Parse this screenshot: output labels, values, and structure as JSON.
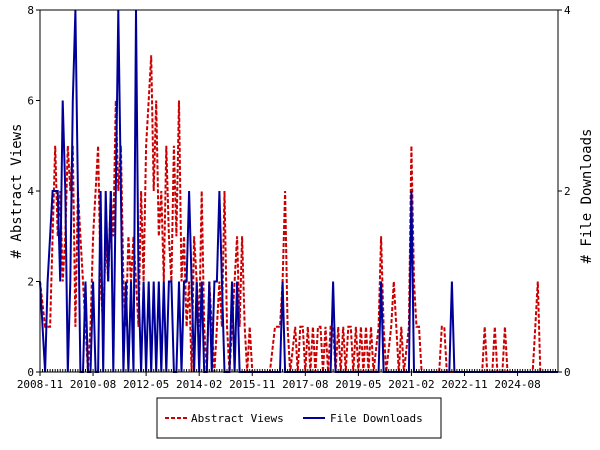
{
  "chart_data": {
    "type": "line",
    "title": "",
    "ylabel": "# Abstract Views",
    "y2label": "# File Downloads",
    "ylim": [
      0,
      8
    ],
    "y2lim": [
      0,
      4
    ],
    "yticks": [
      "0",
      "2",
      "4",
      "6",
      "8"
    ],
    "y2ticks": [
      "0",
      "2",
      "4"
    ],
    "xlim": [
      "2008-11",
      "2025-12"
    ],
    "xticks": [
      "2008-11",
      "2010-08",
      "2012-05",
      "2014-02",
      "2015-11",
      "2017-08",
      "2019-05",
      "2021-02",
      "2022-11",
      "2024-08"
    ],
    "grid": false,
    "legend_position": "bottom",
    "series": [
      {
        "name": "Abstract Views",
        "axis": "left",
        "color": "#cc0000",
        "style": "dashed",
        "points": [
          [
            "2008-11",
            2
          ],
          [
            "2009-01",
            1
          ],
          [
            "2009-03",
            1
          ],
          [
            "2009-04",
            3
          ],
          [
            "2009-05",
            5
          ],
          [
            "2009-06",
            3
          ],
          [
            "2009-07",
            4
          ],
          [
            "2009-08",
            2
          ],
          [
            "2009-09",
            3
          ],
          [
            "2009-10",
            5
          ],
          [
            "2009-11",
            4
          ],
          [
            "2009-12",
            5
          ],
          [
            "2010-01",
            1
          ],
          [
            "2010-02",
            4
          ],
          [
            "2010-03",
            3
          ],
          [
            "2010-04",
            2
          ],
          [
            "2010-05",
            1
          ],
          [
            "2010-06",
            0
          ],
          [
            "2010-07",
            1
          ],
          [
            "2010-08",
            3
          ],
          [
            "2010-09",
            4
          ],
          [
            "2010-10",
            5
          ],
          [
            "2010-11",
            2
          ],
          [
            "2010-12",
            1
          ],
          [
            "2011-01",
            3
          ],
          [
            "2011-02",
            2
          ],
          [
            "2011-03",
            4
          ],
          [
            "2011-04",
            3
          ],
          [
            "2011-05",
            6
          ],
          [
            "2011-06",
            4
          ],
          [
            "2011-07",
            5
          ],
          [
            "2011-08",
            2
          ],
          [
            "2011-09",
            1
          ],
          [
            "2011-10",
            3
          ],
          [
            "2011-11",
            2
          ],
          [
            "2011-12",
            3
          ],
          [
            "2012-01",
            2
          ],
          [
            "2012-02",
            1
          ],
          [
            "2012-03",
            4
          ],
          [
            "2012-04",
            2
          ],
          [
            "2012-05",
            5
          ],
          [
            "2012-06",
            6
          ],
          [
            "2012-07",
            7
          ],
          [
            "2012-08",
            4
          ],
          [
            "2012-09",
            6
          ],
          [
            "2012-10",
            3
          ],
          [
            "2012-11",
            4
          ],
          [
            "2012-12",
            2
          ],
          [
            "2013-01",
            5
          ],
          [
            "2013-02",
            3
          ],
          [
            "2013-03",
            2
          ],
          [
            "2013-04",
            5
          ],
          [
            "2013-05",
            3
          ],
          [
            "2013-06",
            6
          ],
          [
            "2013-07",
            2
          ],
          [
            "2013-08",
            3
          ],
          [
            "2013-09",
            1
          ],
          [
            "2013-10",
            2
          ],
          [
            "2013-11",
            0
          ],
          [
            "2013-12",
            3
          ],
          [
            "2014-01",
            2
          ],
          [
            "2014-02",
            1
          ],
          [
            "2014-03",
            4
          ],
          [
            "2014-04",
            1
          ],
          [
            "2014-05",
            0
          ],
          [
            "2014-06",
            2
          ],
          [
            "2014-07",
            1
          ],
          [
            "2014-08",
            0
          ],
          [
            "2014-09",
            1
          ],
          [
            "2014-10",
            2
          ],
          [
            "2014-11",
            1
          ],
          [
            "2014-12",
            4
          ],
          [
            "2015-01",
            1
          ],
          [
            "2015-02",
            0
          ],
          [
            "2015-03",
            1
          ],
          [
            "2015-04",
            2
          ],
          [
            "2015-05",
            3
          ],
          [
            "2015-06",
            1
          ],
          [
            "2015-07",
            3
          ],
          [
            "2015-08",
            1
          ],
          [
            "2015-09",
            0
          ],
          [
            "2015-10",
            1
          ],
          [
            "2015-11",
            0
          ],
          [
            "2016-01",
            0
          ],
          [
            "2016-06",
            0
          ],
          [
            "2016-08",
            1
          ],
          [
            "2016-09",
            1
          ],
          [
            "2016-10",
            1
          ],
          [
            "2016-11",
            2
          ],
          [
            "2016-12",
            4
          ],
          [
            "2017-01",
            1
          ],
          [
            "2017-02",
            0
          ],
          [
            "2017-04",
            1
          ],
          [
            "2017-05",
            0
          ],
          [
            "2017-06",
            1
          ],
          [
            "2017-07",
            1
          ],
          [
            "2017-08",
            0
          ],
          [
            "2017-09",
            1
          ],
          [
            "2017-10",
            0
          ],
          [
            "2017-11",
            1
          ],
          [
            "2017-12",
            0
          ],
          [
            "2018-01",
            1
          ],
          [
            "2018-02",
            1
          ],
          [
            "2018-03",
            0
          ],
          [
            "2018-04",
            1
          ],
          [
            "2018-05",
            0
          ],
          [
            "2018-06",
            1
          ],
          [
            "2018-07",
            1
          ],
          [
            "2018-08",
            0
          ],
          [
            "2018-09",
            1
          ],
          [
            "2018-10",
            0
          ],
          [
            "2018-11",
            1
          ],
          [
            "2018-12",
            0
          ],
          [
            "2019-01",
            1
          ],
          [
            "2019-02",
            1
          ],
          [
            "2019-03",
            0
          ],
          [
            "2019-04",
            1
          ],
          [
            "2019-05",
            0
          ],
          [
            "2019-06",
            1
          ],
          [
            "2019-07",
            0
          ],
          [
            "2019-08",
            1
          ],
          [
            "2019-09",
            0
          ],
          [
            "2019-10",
            1
          ],
          [
            "2019-11",
            0
          ],
          [
            "2020-01",
            1
          ],
          [
            "2020-02",
            3
          ],
          [
            "2020-03",
            1
          ],
          [
            "2020-04",
            0
          ],
          [
            "2020-06",
            1
          ],
          [
            "2020-07",
            2
          ],
          [
            "2020-08",
            1
          ],
          [
            "2020-09",
            0
          ],
          [
            "2020-10",
            1
          ],
          [
            "2020-11",
            0
          ],
          [
            "2021-01",
            1
          ],
          [
            "2021-02",
            5
          ],
          [
            "2021-03",
            2
          ],
          [
            "2021-04",
            1
          ],
          [
            "2021-05",
            1
          ],
          [
            "2021-06",
            0
          ],
          [
            "2022-01",
            0
          ],
          [
            "2022-02",
            1
          ],
          [
            "2022-03",
            1
          ],
          [
            "2022-04",
            0
          ],
          [
            "2023-06",
            0
          ],
          [
            "2023-07",
            1
          ],
          [
            "2023-08",
            0
          ],
          [
            "2023-10",
            0
          ],
          [
            "2023-11",
            1
          ],
          [
            "2023-12",
            0
          ],
          [
            "2024-02",
            0
          ],
          [
            "2024-03",
            1
          ],
          [
            "2024-04",
            0
          ],
          [
            "2025-02",
            0
          ],
          [
            "2025-03",
            1
          ],
          [
            "2025-04",
            2
          ],
          [
            "2025-05",
            0
          ],
          [
            "2025-12",
            0
          ]
        ]
      },
      {
        "name": "File Downloads",
        "axis": "right",
        "color": "#000099",
        "style": "solid",
        "points": [
          [
            "2008-11",
            1
          ],
          [
            "2009-01",
            0
          ],
          [
            "2009-02",
            1
          ],
          [
            "2009-04",
            2
          ],
          [
            "2009-05",
            2
          ],
          [
            "2009-06",
            2
          ],
          [
            "2009-07",
            1
          ],
          [
            "2009-08",
            3
          ],
          [
            "2009-09",
            2
          ],
          [
            "2009-10",
            0
          ],
          [
            "2009-11",
            1
          ],
          [
            "2009-12",
            3
          ],
          [
            "2010-01",
            4
          ],
          [
            "2010-02",
            2
          ],
          [
            "2010-03",
            0
          ],
          [
            "2010-04",
            0
          ],
          [
            "2010-05",
            1
          ],
          [
            "2010-06",
            0
          ],
          [
            "2010-07",
            0
          ],
          [
            "2010-08",
            1
          ],
          [
            "2010-09",
            0
          ],
          [
            "2010-10",
            0
          ],
          [
            "2010-11",
            2
          ],
          [
            "2010-12",
            0
          ],
          [
            "2011-01",
            2
          ],
          [
            "2011-02",
            1
          ],
          [
            "2011-03",
            2
          ],
          [
            "2011-04",
            0
          ],
          [
            "2011-05",
            2
          ],
          [
            "2011-06",
            4
          ],
          [
            "2011-07",
            2
          ],
          [
            "2011-08",
            0
          ],
          [
            "2011-09",
            1
          ],
          [
            "2011-10",
            0
          ],
          [
            "2011-11",
            1
          ],
          [
            "2011-12",
            0
          ],
          [
            "2012-01",
            4
          ],
          [
            "2012-02",
            1
          ],
          [
            "2012-03",
            0
          ],
          [
            "2012-04",
            1
          ],
          [
            "2012-05",
            0
          ],
          [
            "2012-06",
            1
          ],
          [
            "2012-07",
            0
          ],
          [
            "2012-08",
            1
          ],
          [
            "2012-09",
            0
          ],
          [
            "2012-10",
            1
          ],
          [
            "2012-11",
            0
          ],
          [
            "2012-12",
            1
          ],
          [
            "2013-01",
            0
          ],
          [
            "2013-02",
            1
          ],
          [
            "2013-03",
            1
          ],
          [
            "2013-04",
            0
          ],
          [
            "2013-05",
            0
          ],
          [
            "2013-06",
            1
          ],
          [
            "2013-07",
            0
          ],
          [
            "2013-08",
            1
          ],
          [
            "2013-09",
            1
          ],
          [
            "2013-10",
            2
          ],
          [
            "2013-11",
            1
          ],
          [
            "2013-12",
            0
          ],
          [
            "2014-01",
            1
          ],
          [
            "2014-02",
            0
          ],
          [
            "2014-03",
            1
          ],
          [
            "2014-04",
            0
          ],
          [
            "2014-05",
            0
          ],
          [
            "2014-06",
            1
          ],
          [
            "2014-07",
            0
          ],
          [
            "2014-08",
            1
          ],
          [
            "2014-09",
            1
          ],
          [
            "2014-10",
            2
          ],
          [
            "2014-11",
            1
          ],
          [
            "2014-12",
            0
          ],
          [
            "2015-01",
            0
          ],
          [
            "2015-02",
            0
          ],
          [
            "2015-03",
            1
          ],
          [
            "2015-04",
            0
          ],
          [
            "2015-05",
            1
          ],
          [
            "2015-06",
            0
          ],
          [
            "2015-07",
            0
          ],
          [
            "2016-06",
            0
          ],
          [
            "2016-07",
            0
          ],
          [
            "2016-10",
            0
          ],
          [
            "2016-11",
            1
          ],
          [
            "2016-12",
            0
          ],
          [
            "2017-08",
            0
          ],
          [
            "2017-09",
            0
          ],
          [
            "2017-10",
            0
          ],
          [
            "2018-06",
            0
          ],
          [
            "2018-07",
            1
          ],
          [
            "2018-08",
            0
          ],
          [
            "2019-05",
            0
          ],
          [
            "2019-06",
            0
          ],
          [
            "2019-07",
            0
          ],
          [
            "2020-01",
            0
          ],
          [
            "2020-02",
            1
          ],
          [
            "2020-03",
            0
          ],
          [
            "2020-04",
            0
          ],
          [
            "2021-01",
            0
          ],
          [
            "2021-02",
            2
          ],
          [
            "2021-03",
            0
          ],
          [
            "2021-04",
            0
          ],
          [
            "2022-04",
            0
          ],
          [
            "2022-05",
            0
          ],
          [
            "2022-06",
            1
          ],
          [
            "2022-07",
            0
          ],
          [
            "2023-06",
            0
          ],
          [
            "2025-12",
            0
          ]
        ]
      }
    ]
  }
}
